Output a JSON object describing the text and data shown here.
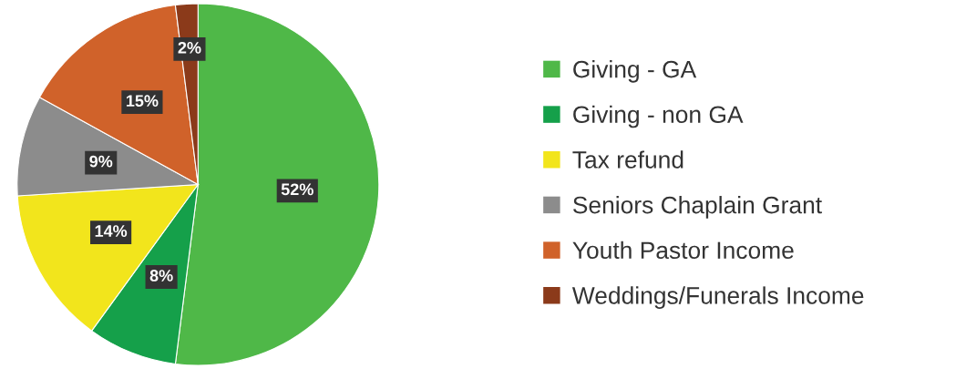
{
  "chart_data": {
    "type": "pie",
    "categories": [
      "Giving - GA",
      "Giving - non GA",
      "Tax refund",
      "Seniors Chaplain Grant",
      "Youth Pastor Income",
      "Weddings/Funerals Income"
    ],
    "values": [
      52,
      8,
      14,
      9,
      15,
      2
    ],
    "value_labels": [
      "52%",
      "8%",
      "14%",
      "9%",
      "15%",
      "2%"
    ],
    "colors": [
      "#4fb848",
      "#15a04a",
      "#f2e51c",
      "#8c8c8c",
      "#d0622a",
      "#8b3a1a"
    ],
    "legend": "right"
  }
}
